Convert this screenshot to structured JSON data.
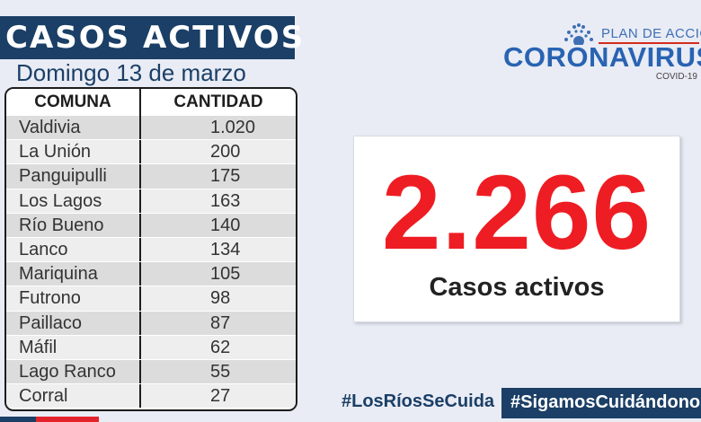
{
  "header": {
    "title": "CASOS ACTIVOS",
    "date": "Domingo 13 de marzo"
  },
  "table": {
    "columns": [
      "COMUNA",
      "CANTIDAD"
    ],
    "rows": [
      {
        "comuna": "Valdivia",
        "cantidad": "1.020"
      },
      {
        "comuna": "La Unión",
        "cantidad": "200"
      },
      {
        "comuna": "Panguipulli",
        "cantidad": "175"
      },
      {
        "comuna": "Los Lagos",
        "cantidad": "163"
      },
      {
        "comuna": "Río Bueno",
        "cantidad": "140"
      },
      {
        "comuna": "Lanco",
        "cantidad": "134"
      },
      {
        "comuna": "Mariquina",
        "cantidad": "105"
      },
      {
        "comuna": "Futrono",
        "cantidad": "98"
      },
      {
        "comuna": "Paillaco",
        "cantidad": "87"
      },
      {
        "comuna": "Máfil",
        "cantidad": "62"
      },
      {
        "comuna": "Lago Ranco",
        "cantidad": "55"
      },
      {
        "comuna": "Corral",
        "cantidad": "27"
      }
    ]
  },
  "logo": {
    "plan": "PLAN DE ACCIÓN",
    "name": "CORONAVIRUS",
    "sub": "COVID-19",
    "icon": "sun-rays-icon"
  },
  "summary": {
    "total": "2.266",
    "label": "Casos activos"
  },
  "hashtags": {
    "primary": "#LosRíosSeCuida",
    "secondary": "#SigamosCuidándonos"
  },
  "colors": {
    "navy": "#1b3f66",
    "red": "#ee1d23",
    "logo_blue": "#2963b2",
    "background": "#e9ecf5"
  }
}
